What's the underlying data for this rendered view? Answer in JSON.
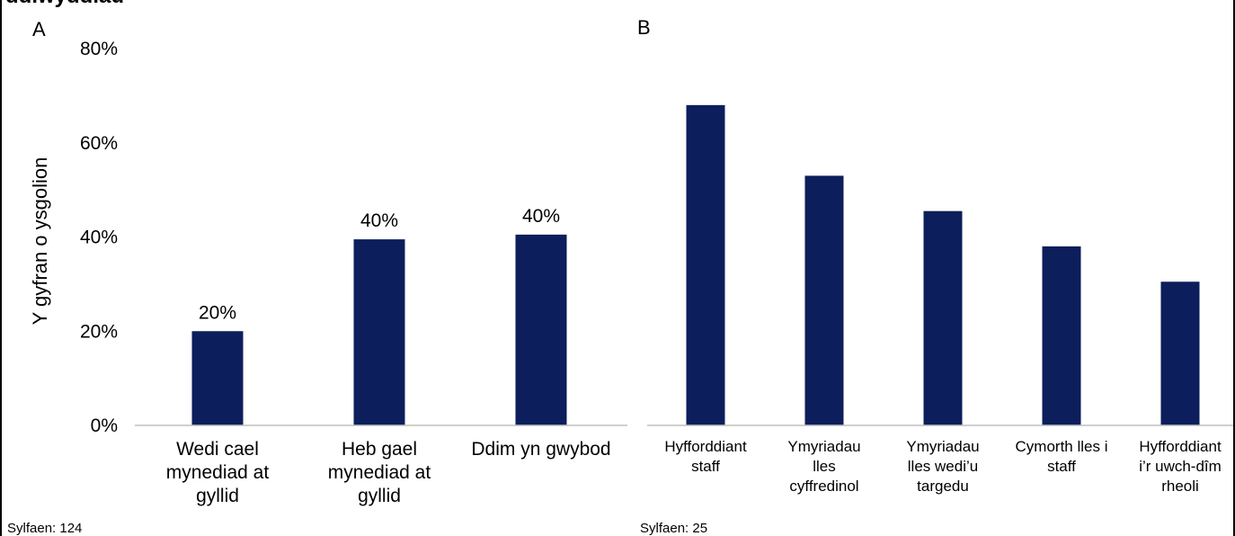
{
  "top_text": "ddiwyddiau",
  "colors": {
    "bar": "#0c1e5b",
    "axis": "#bfbfbf",
    "frame": "#000000"
  },
  "chart_data": [
    {
      "type": "bar",
      "panel_label": "A",
      "ylabel": "Y gyfran o ysgolion",
      "ylim": [
        0,
        0.8
      ],
      "yticks": [
        "0%",
        "20%",
        "40%",
        "60%",
        "80%"
      ],
      "categories": [
        [
          "Wedi cael",
          "mynediad at",
          "gyllid"
        ],
        [
          "Heb gael",
          "mynediad at",
          "gyllid"
        ],
        [
          "Ddim yn gwybod"
        ]
      ],
      "values": [
        0.2,
        0.395,
        0.405
      ],
      "data_labels": [
        "20%",
        "40%",
        "40%"
      ],
      "footnote": "Sylfaen: 124",
      "grid": false
    },
    {
      "type": "bar",
      "panel_label": "B",
      "ylim": [
        0,
        0.8
      ],
      "categories": [
        [
          "Hyfforddiant",
          "staff"
        ],
        [
          "Ymyriadau",
          "lles",
          "cyffredinol"
        ],
        [
          "Ymyriadau",
          "lles wedi’u",
          "targedu"
        ],
        [
          "Cymorth lles i",
          "staff"
        ],
        [
          "Hyfforddiant",
          "i’r uwch-dîm",
          "rheoli"
        ]
      ],
      "values": [
        0.68,
        0.53,
        0.455,
        0.38,
        0.305
      ],
      "footnote": "Sylfaen: 25",
      "grid": false
    }
  ]
}
